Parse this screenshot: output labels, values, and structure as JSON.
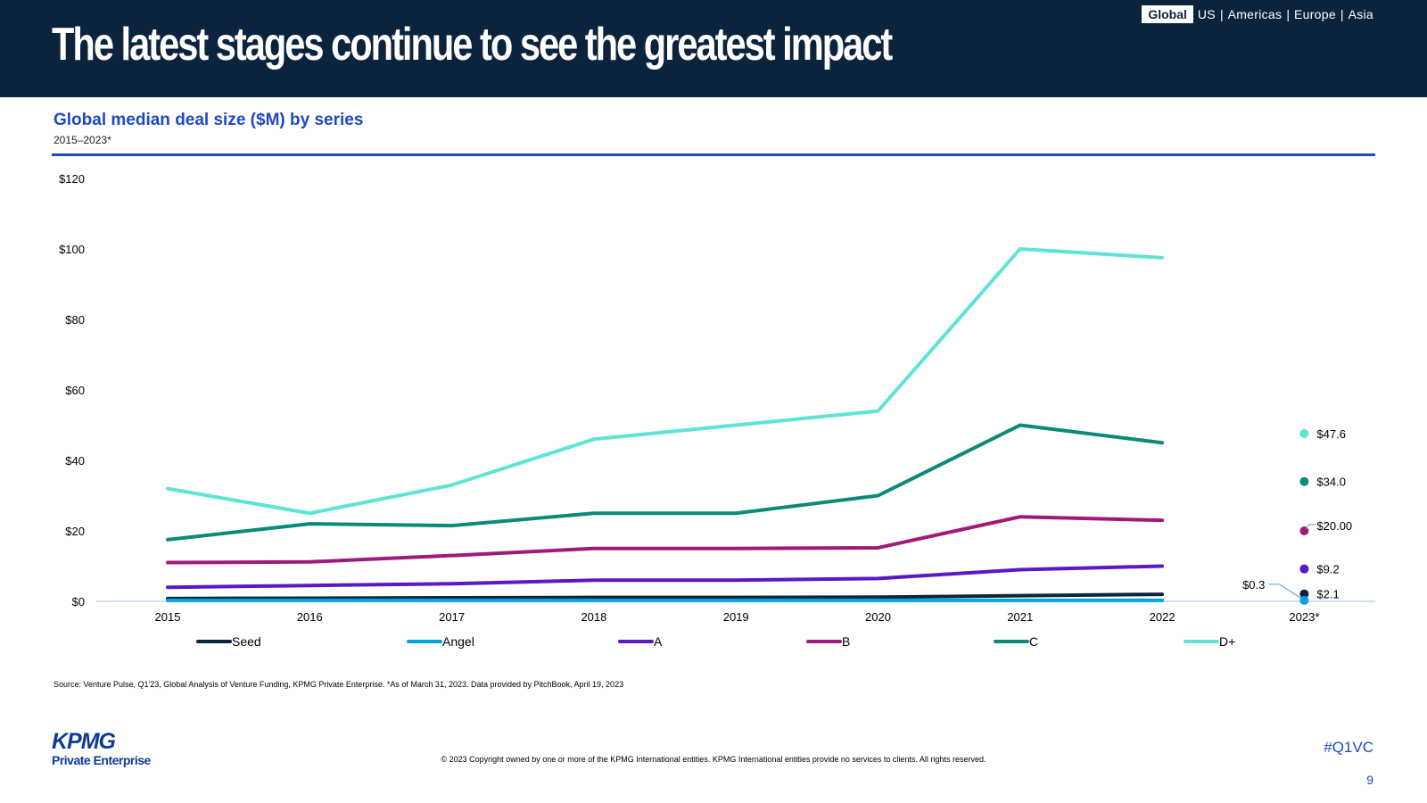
{
  "header": {
    "title": "The latest stages continue to see the greatest impact",
    "regions": [
      "Global",
      "US",
      "Americas",
      "Europe",
      "Asia"
    ],
    "active_region": "Global"
  },
  "chart_title": "Global median deal size ($M) by series",
  "chart_subtitle": "2015–2023*",
  "source": "Source: Venture Pulse, Q1'23, Global Analysis of Venture Funding, KPMG Private Enterprise. *As of March 31, 2023. Data provided by PitchBook, April 19, 2023",
  "footer": {
    "logo_text": "KPMG",
    "logo_subtext": "Private Enterprise",
    "copyright": "© 2023 Copyright owned by one or more of the KPMG International entities. KPMG International entities provide no services to clients. All rights reserved.",
    "hashtag": "#Q1VC",
    "page_number": "9"
  },
  "chart_data": {
    "type": "line",
    "title": "Global median deal size ($M) by series",
    "subtitle": "2015–2023*",
    "xlabel": "",
    "ylabel": "",
    "x": [
      "2015",
      "2016",
      "2017",
      "2018",
      "2019",
      "2020",
      "2021",
      "2022",
      "2023*"
    ],
    "ylim": [
      0,
      120
    ],
    "yticks": [
      0,
      20,
      40,
      60,
      80,
      100,
      120
    ],
    "ytick_labels": [
      "$0",
      "$20",
      "$40",
      "$60",
      "$80",
      "$100",
      "$120"
    ],
    "grid": false,
    "legend_position": "bottom",
    "series": [
      {
        "name": "Seed",
        "color": "#0c233d",
        "values": [
          0.8,
          0.9,
          1.0,
          1.1,
          1.1,
          1.2,
          1.6,
          2.0,
          2.1
        ],
        "last_label": "$2.1"
      },
      {
        "name": "Angel",
        "color": "#00a3e0",
        "values": [
          0.3,
          0.3,
          0.3,
          0.3,
          0.3,
          0.3,
          0.3,
          0.3,
          0.3
        ],
        "last_label": "$0.3"
      },
      {
        "name": "A",
        "color": "#5b19c4",
        "values": [
          4.0,
          4.5,
          5.0,
          6.0,
          6.0,
          6.5,
          9.0,
          10.0,
          9.2
        ],
        "last_label": "$9.2"
      },
      {
        "name": "B",
        "color": "#9e1a7a",
        "values": [
          11.0,
          11.2,
          13.0,
          15.0,
          15.0,
          15.2,
          24.0,
          23.0,
          20.0
        ],
        "last_label": "$20.00"
      },
      {
        "name": "C",
        "color": "#0b8a78",
        "values": [
          17.5,
          22.0,
          21.5,
          25.0,
          25.0,
          30.0,
          50.0,
          45.0,
          34.0
        ],
        "last_label": "$34.0"
      },
      {
        "name": "D+",
        "color": "#5ee3d4",
        "values": [
          32.0,
          25.0,
          33.0,
          46.0,
          50.0,
          54.0,
          100.0,
          97.5,
          47.6
        ],
        "last_label": "$47.6"
      }
    ]
  }
}
